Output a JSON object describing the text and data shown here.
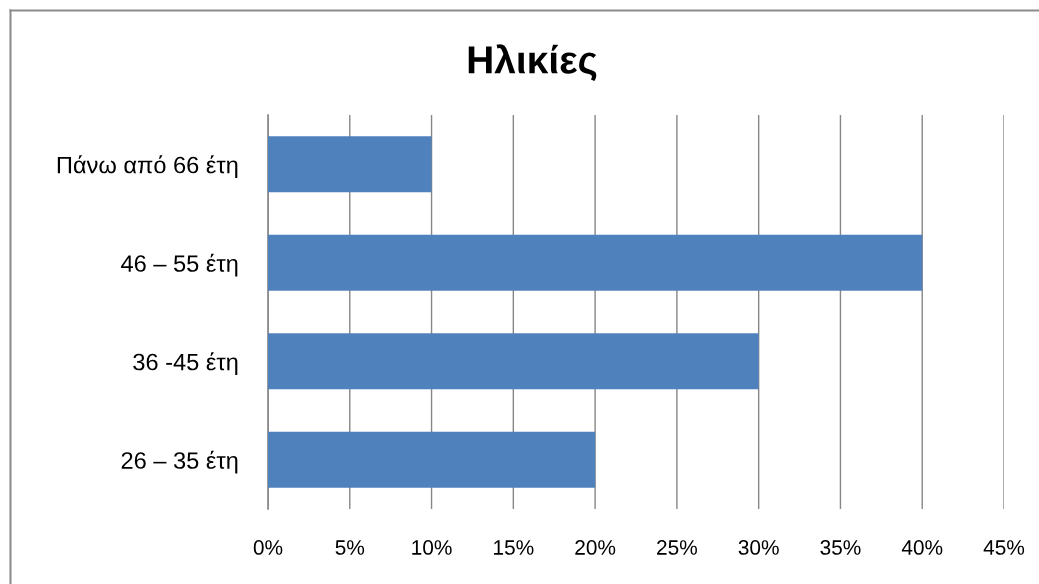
{
  "chart_data": {
    "type": "bar",
    "orientation": "horizontal",
    "title": "Ηλικίες",
    "categories": [
      "Πάνω από 66 έτη",
      "46 – 55 έτη",
      "36 -45 έτη",
      "26 – 35 έτη"
    ],
    "values": [
      10,
      40,
      30,
      20
    ],
    "color": "#4f81bd",
    "xlim": [
      0,
      45
    ],
    "xticks": [
      {
        "value": 0,
        "label": "0%"
      },
      {
        "value": 5,
        "label": "5%"
      },
      {
        "value": 10,
        "label": "10%"
      },
      {
        "value": 15,
        "label": "15%"
      },
      {
        "value": 20,
        "label": "20%"
      },
      {
        "value": 25,
        "label": "25%"
      },
      {
        "value": 30,
        "label": "30%"
      },
      {
        "value": 35,
        "label": "35%"
      },
      {
        "value": 40,
        "label": "40%"
      },
      {
        "value": 45,
        "label": "45%"
      }
    ],
    "grid": "x",
    "legend": false
  }
}
